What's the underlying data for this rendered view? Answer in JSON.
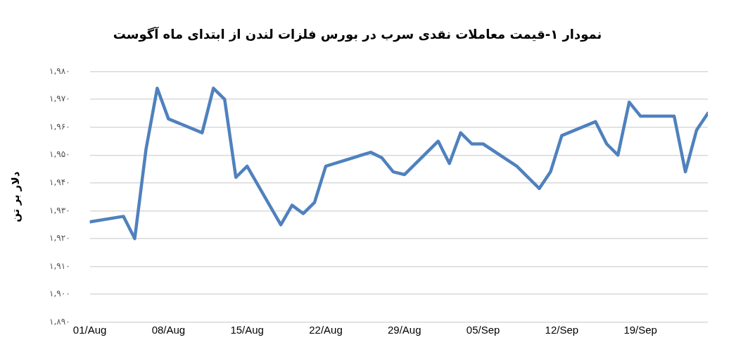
{
  "chart_data": {
    "type": "line",
    "title": "نمودار ۱-قیمت معاملات نقدی سرب در بورس فلزات لندن از ابتدای ماه آگوست",
    "ylabel": "دلار بر تن",
    "x": [
      "--08-01",
      "--08-04",
      "--08-05",
      "--08-06",
      "--08-07",
      "--08-08",
      "--08-11",
      "--08-12",
      "--08-13",
      "--08-14",
      "--08-15",
      "--08-18",
      "--08-19",
      "--08-20",
      "--08-21",
      "--08-22",
      "--08-26",
      "--08-27",
      "--08-28",
      "--08-29",
      "--09-01",
      "--09-02",
      "--09-03",
      "--09-04",
      "--09-05",
      "--09-08",
      "--09-10",
      "--09-11",
      "--09-12",
      "--09-15",
      "--09-16",
      "--09-17",
      "--09-18",
      "--09-19",
      "--09-22",
      "--09-23",
      "--09-24",
      "--09-25"
    ],
    "series": [
      {
        "color": "#4f81bd",
        "values": [
          1926,
          1928,
          1920,
          1952,
          1974,
          1963,
          1958,
          1974,
          1970,
          1942,
          1946,
          1925,
          1932,
          1929,
          1933,
          1946,
          1951,
          1949,
          1944,
          1943,
          1955,
          1947,
          1958,
          1954,
          1954,
          1946,
          1938,
          1944,
          1957,
          1962,
          1954,
          1950,
          1969,
          1964,
          1964,
          1944,
          1959,
          1965
        ]
      }
    ],
    "xlim": [
      "--08-01",
      "--09-25"
    ],
    "xticks": [
      {
        "value": "--08-01",
        "label": "01/Aug"
      },
      {
        "value": "--08-08",
        "label": "08/Aug"
      },
      {
        "value": "--08-15",
        "label": "15/Aug"
      },
      {
        "value": "--08-22",
        "label": "22/Aug"
      },
      {
        "value": "--08-29",
        "label": "29/Aug"
      },
      {
        "value": "--09-05",
        "label": "05/Sep"
      },
      {
        "value": "--09-12",
        "label": "12/Sep"
      },
      {
        "value": "--09-19",
        "label": "19/Sep"
      }
    ],
    "ylim": [
      1890,
      1980
    ],
    "yticks": [
      {
        "value": 1890,
        "label": "۱,۸۹۰"
      },
      {
        "value": 1900,
        "label": "۱,۹۰۰"
      },
      {
        "value": 1910,
        "label": "۱,۹۱۰"
      },
      {
        "value": 1920,
        "label": "۱,۹۲۰"
      },
      {
        "value": 1930,
        "label": "۱,۹۳۰"
      },
      {
        "value": 1940,
        "label": "۱,۹۴۰"
      },
      {
        "value": 1950,
        "label": "۱,۹۵۰"
      },
      {
        "value": 1960,
        "label": "۱,۹۶۰"
      },
      {
        "value": 1970,
        "label": "۱,۹۷۰"
      },
      {
        "value": 1980,
        "label": "۱,۹۸۰"
      }
    ],
    "grid": "y",
    "marker": "none",
    "line_style": "solid",
    "legend": false
  }
}
